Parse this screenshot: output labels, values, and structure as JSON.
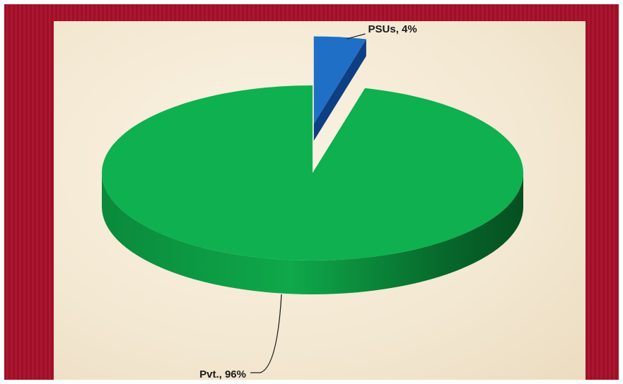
{
  "chart_data": {
    "type": "pie",
    "style": "3d-exploded",
    "slices": [
      {
        "label": "PSUs",
        "value": 4,
        "display": "PSUs, 4%",
        "color": "#1f6fc7"
      },
      {
        "label": "Pvt.",
        "value": 96,
        "display": "Pvt., 96%",
        "color": "#0fb04f"
      }
    ],
    "title": "",
    "legend": "none"
  },
  "theme": {
    "frame_color": "#a8102a",
    "panel_color": "#f5ecd8"
  }
}
